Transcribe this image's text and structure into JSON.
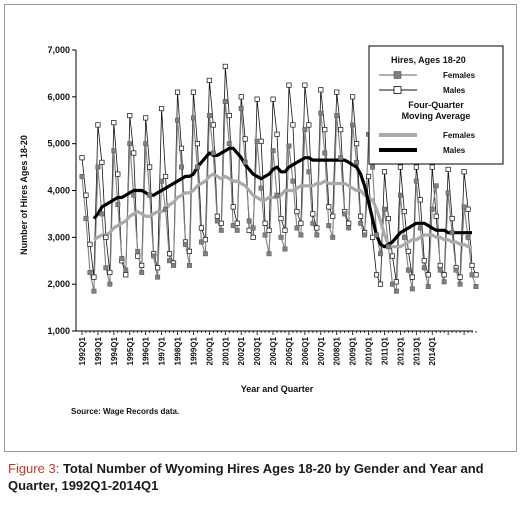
{
  "caption": {
    "label": "Figure 3:",
    "text": "Total Number of Wyoming Hires Ages 18-20 by Gender and Year and Quarter, 1992Q1-2014Q1"
  },
  "source": "Source: Wage Records data.",
  "chart_data": {
    "type": "line",
    "xlabel": "Year and Quarter",
    "ylabel": "Number of Hires Ages 18-20",
    "ylim": [
      1000,
      7000
    ],
    "yticks": [
      1000,
      2000,
      3000,
      4000,
      5000,
      6000,
      7000
    ],
    "ytick_labels": [
      "1,000",
      "2,000",
      "3,000",
      "4,000",
      "5,000",
      "6,000",
      "7,000"
    ],
    "x_tick_labels": [
      "1992Q1",
      "1993Q1",
      "1994Q1",
      "1995Q1",
      "1996Q1",
      "1997Q1",
      "1998Q1",
      "1999Q1",
      "2000Q1",
      "2001Q1",
      "2002Q1",
      "2003Q1",
      "2004Q1",
      "2005Q1",
      "2006Q1",
      "2007Q1",
      "2008Q1",
      "2009Q1",
      "2010Q1",
      "2011Q1",
      "2012Q1",
      "2013Q1",
      "2014Q1"
    ],
    "grid": false,
    "legend": {
      "position": "top-right",
      "group1_title": "Hires, Ages 18-20",
      "group2_title": "Four-Quarter Moving Average",
      "entries": [
        "Females",
        "Males",
        "Females",
        "Males"
      ]
    },
    "colors": {
      "females": "#808080",
      "males": "#111111",
      "ma_females": "#aaaaaa",
      "ma_males": "#000000"
    },
    "series": [
      {
        "name": "Females",
        "values": [
          4300,
          3400,
          2250,
          1850,
          4500,
          3500,
          2350,
          2000,
          4850,
          3700,
          2550,
          2300,
          5000,
          3900,
          2700,
          2250,
          5000,
          3900,
          2600,
          2150,
          4200,
          3600,
          2500,
          2400,
          5500,
          4500,
          2850,
          2400,
          5550,
          4500,
          2900,
          2650,
          5600,
          4800,
          3350,
          3150,
          5900,
          5000,
          3250,
          3150,
          5750,
          4600,
          3350,
          3200,
          5050,
          4050,
          3050,
          2650,
          4850,
          3900,
          3000,
          2750,
          4950,
          4200,
          3200,
          3050,
          5300,
          4400,
          3300,
          3050,
          5650,
          4800,
          3250,
          3000,
          5600,
          4700,
          3500,
          3200,
          5400,
          4600,
          3300,
          3050,
          5200,
          4500,
          3050,
          2650,
          3600,
          2800,
          2000,
          1850,
          3900,
          3000,
          2300,
          1900,
          4200,
          3200,
          2350,
          1950,
          3600,
          4100,
          2300,
          2050,
          3950,
          3100,
          2300,
          2000,
          3650,
          3000,
          2200,
          1950
        ]
      },
      {
        "name": "Males",
        "values": [
          4700,
          3900,
          2850,
          2150,
          5400,
          4600,
          3000,
          2250,
          5450,
          4350,
          2500,
          2200,
          5600,
          4800,
          2600,
          2400,
          5550,
          4500,
          2650,
          2350,
          5750,
          4300,
          2650,
          2450,
          6100,
          4900,
          2900,
          2700,
          6100,
          5000,
          3200,
          2950,
          6350,
          5400,
          3450,
          3300,
          6650,
          5600,
          3650,
          3300,
          6000,
          5100,
          3150,
          3000,
          5950,
          5050,
          3300,
          3150,
          5950,
          5200,
          3400,
          3150,
          6250,
          5400,
          3550,
          3300,
          6250,
          5400,
          3500,
          3200,
          6150,
          5300,
          3650,
          3450,
          6100,
          5300,
          3550,
          3300,
          6000,
          5000,
          3450,
          3100,
          4300,
          3000,
          2200,
          2000,
          4400,
          3400,
          2600,
          2050,
          4500,
          3550,
          2700,
          2150,
          4500,
          3800,
          2500,
          2200,
          4500,
          3450,
          2400,
          2200,
          4450,
          3400,
          2350,
          2150,
          4400,
          3600,
          2400,
          2200
        ]
      },
      {
        "name": "Females",
        "values": [
          null,
          null,
          null,
          2950,
          3000,
          3050,
          3050,
          3100,
          3200,
          3250,
          3300,
          3350,
          3450,
          3500,
          3550,
          3500,
          3450,
          3450,
          3500,
          3550,
          3550,
          3600,
          3700,
          3750,
          3850,
          3900,
          3950,
          3950,
          4000,
          4100,
          4150,
          4200,
          4300,
          4350,
          4300,
          4250,
          4300,
          4250,
          4200,
          4200,
          4150,
          4100,
          4000,
          3900,
          3850,
          3800,
          3800,
          3850,
          3850,
          3850,
          3900,
          4000,
          4000,
          4000,
          4050,
          4100,
          4100,
          4100,
          4100,
          4150,
          4150,
          4200,
          4150,
          4150,
          4150,
          4150,
          4150,
          4100,
          4050,
          4000,
          4000,
          3900,
          3850,
          3800,
          3600,
          3350,
          3050,
          2850,
          2800,
          2800,
          2800,
          2850,
          2900,
          2950,
          2950,
          3000,
          3050,
          3050,
          3050,
          3000,
          3000,
          2950,
          2950,
          2900,
          2900,
          2850,
          2850,
          2800,
          2800
        ]
      },
      {
        "name": "Males",
        "values": [
          null,
          null,
          null,
          3400,
          3500,
          3650,
          3700,
          3750,
          3800,
          3850,
          3850,
          3900,
          3950,
          4000,
          4000,
          4000,
          3950,
          3900,
          3900,
          3950,
          4000,
          4050,
          4100,
          4150,
          4200,
          4250,
          4300,
          4300,
          4350,
          4500,
          4600,
          4700,
          4800,
          4750,
          4750,
          4800,
          4850,
          4900,
          4900,
          4800,
          4700,
          4550,
          4450,
          4350,
          4300,
          4250,
          4300,
          4350,
          4450,
          4500,
          4400,
          4400,
          4500,
          4550,
          4600,
          4650,
          4700,
          4700,
          4650,
          4650,
          4650,
          4650,
          4650,
          4650,
          4650,
          4650,
          4650,
          4600,
          4550,
          4500,
          4350,
          4100,
          3750,
          3400,
          3050,
          2850,
          2800,
          2850,
          2900,
          3000,
          3100,
          3150,
          3200,
          3250,
          3300,
          3300,
          3300,
          3250,
          3200,
          3150,
          3150,
          3150,
          3100,
          3100,
          3100,
          3100,
          3100,
          3100,
          3100
        ]
      }
    ]
  }
}
